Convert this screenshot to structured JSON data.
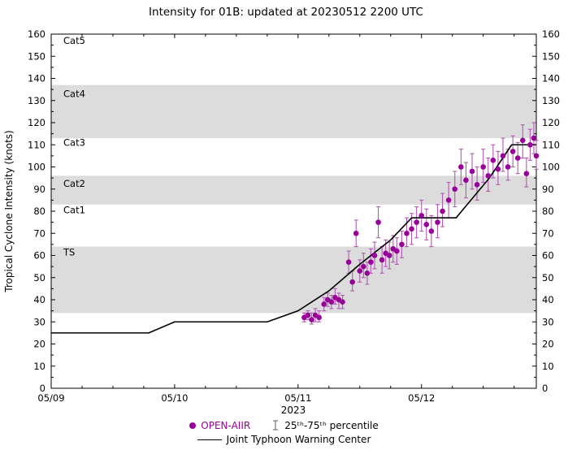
{
  "chart_data": {
    "type": "scatter",
    "title": "Intensity for 01B: updated at 20230512 2200 UTC",
    "xlabel": "2023",
    "ylabel": "Tropical Cyclone Intensity (knots)",
    "ylim": [
      0,
      160
    ],
    "ytick_interval": 10,
    "ytick_minor_interval": 5,
    "xlim_days": [
      0,
      3.93
    ],
    "xticks": [
      {
        "pos": 0,
        "label": "05/09"
      },
      {
        "pos": 1,
        "label": "05/10"
      },
      {
        "pos": 2,
        "label": "05/11"
      },
      {
        "pos": 3,
        "label": "05/12"
      }
    ],
    "xtick_minor_interval": 0.25,
    "band_color": "#dcdcdc",
    "bands": [
      {
        "name": "TS",
        "from": 34,
        "to": 64
      },
      {
        "name": "Cat2",
        "from": 83,
        "to": 96
      },
      {
        "name": "Cat4",
        "from": 113,
        "to": 137
      }
    ],
    "category_labels": [
      {
        "label": "Cat5",
        "knots": 157
      },
      {
        "label": "Cat4",
        "knots": 133
      },
      {
        "label": "Cat3",
        "knots": 111
      },
      {
        "label": "Cat2",
        "knots": 92.5
      },
      {
        "label": "Cat1",
        "knots": 80.5
      },
      {
        "label": "TS",
        "knots": 61.5
      }
    ],
    "series": [
      {
        "name": "OPEN-AIIR",
        "type": "scatter",
        "color": "#990099",
        "errorbar_color": "#b05ab0",
        "points": [
          [
            2.05,
            32,
            30,
            34
          ],
          [
            2.08,
            33,
            31,
            35
          ],
          [
            2.11,
            31,
            29,
            34
          ],
          [
            2.14,
            33,
            30,
            36
          ],
          [
            2.17,
            32,
            30,
            35
          ],
          [
            2.21,
            38,
            35,
            41
          ],
          [
            2.24,
            40,
            37,
            43
          ],
          [
            2.27,
            39,
            36,
            42
          ],
          [
            2.3,
            41,
            38,
            45
          ],
          [
            2.33,
            40,
            36,
            43
          ],
          [
            2.36,
            39,
            36,
            42
          ],
          [
            2.41,
            57,
            52,
            62
          ],
          [
            2.44,
            48,
            44,
            53
          ],
          [
            2.47,
            70,
            64,
            76
          ],
          [
            2.5,
            53,
            48,
            58
          ],
          [
            2.53,
            55,
            50,
            61
          ],
          [
            2.56,
            52,
            47,
            57
          ],
          [
            2.59,
            57,
            52,
            63
          ],
          [
            2.62,
            60,
            54,
            66
          ],
          [
            2.65,
            75,
            68,
            82
          ],
          [
            2.68,
            58,
            52,
            64
          ],
          [
            2.71,
            61,
            55,
            67
          ],
          [
            2.74,
            60,
            54,
            66
          ],
          [
            2.77,
            63,
            57,
            69
          ],
          [
            2.8,
            62,
            56,
            68
          ],
          [
            2.84,
            65,
            59,
            71
          ],
          [
            2.88,
            70,
            64,
            77
          ],
          [
            2.92,
            72,
            65,
            79
          ],
          [
            2.96,
            75,
            68,
            82
          ],
          [
            3.0,
            78,
            71,
            85
          ],
          [
            3.04,
            74,
            67,
            81
          ],
          [
            3.08,
            71,
            64,
            78
          ],
          [
            3.13,
            75,
            68,
            83
          ],
          [
            3.17,
            80,
            73,
            88
          ],
          [
            3.22,
            85,
            77,
            93
          ],
          [
            3.27,
            90,
            82,
            98
          ],
          [
            3.32,
            100,
            92,
            108
          ],
          [
            3.36,
            94,
            86,
            102
          ],
          [
            3.41,
            98,
            90,
            106
          ],
          [
            3.45,
            92,
            85,
            100
          ],
          [
            3.5,
            100,
            93,
            108
          ],
          [
            3.54,
            96,
            89,
            104
          ],
          [
            3.58,
            103,
            95,
            110
          ],
          [
            3.62,
            99,
            92,
            107
          ],
          [
            3.66,
            105,
            98,
            113
          ],
          [
            3.7,
            100,
            94,
            108
          ],
          [
            3.74,
            107,
            100,
            114
          ],
          [
            3.78,
            104,
            97,
            111
          ],
          [
            3.82,
            112,
            104,
            119
          ],
          [
            3.85,
            97,
            91,
            104
          ],
          [
            3.88,
            110,
            103,
            117
          ],
          [
            3.91,
            113,
            106,
            120
          ],
          [
            3.93,
            105,
            99,
            112
          ]
        ]
      },
      {
        "name": "Joint Typhoon Warning Center",
        "type": "line",
        "color": "#000000",
        "points": [
          [
            0,
            25
          ],
          [
            0.79,
            25
          ],
          [
            1.0,
            30
          ],
          [
            1.75,
            30
          ],
          [
            2.0,
            35
          ],
          [
            2.25,
            44
          ],
          [
            2.5,
            56
          ],
          [
            2.75,
            67
          ],
          [
            2.92,
            77
          ],
          [
            3.28,
            77
          ],
          [
            3.55,
            95
          ],
          [
            3.73,
            110
          ],
          [
            3.93,
            110
          ]
        ]
      }
    ],
    "legend": {
      "open_aiir_label": "OPEN-AIIR",
      "percentile_label": "25ᵗʰ-75ᵗʰ percentile",
      "jtwc_label": "Joint Typhoon Warning Center"
    }
  }
}
